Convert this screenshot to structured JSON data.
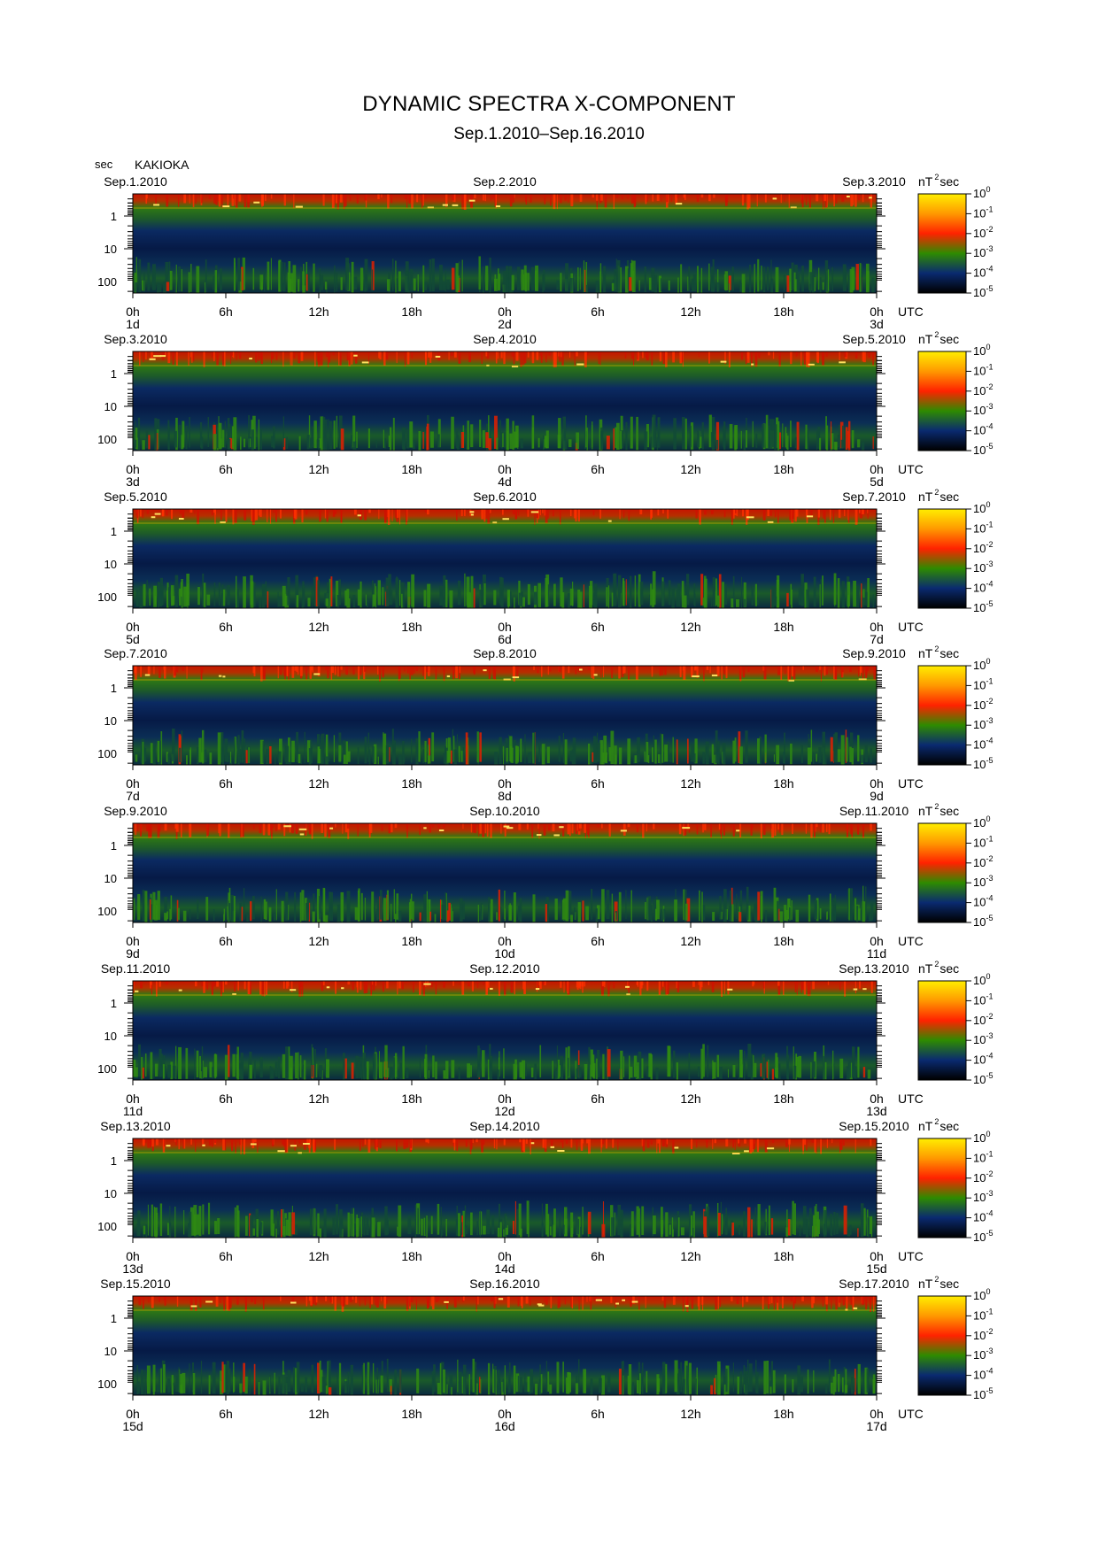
{
  "title": "DYNAMIC SPECTRA X-COMPONENT",
  "subtitle": "Sep.1.2010–Sep.16.2010",
  "station": "KAKIOKA",
  "yaxis_unit": "sec",
  "utc_label": "UTC",
  "colorbar_unit_base": "nT",
  "colorbar_unit_exp": "2",
  "colorbar_unit_tail": "sec",
  "chart_data": {
    "type": "heatmap",
    "title": "DYNAMIC SPECTRA X-COMPONENT",
    "subtitle": "Sep.1.2010–Sep.16.2010",
    "ylabel": "sec",
    "y_scale": "log",
    "y_ticks": [
      1,
      10,
      100
    ],
    "y_tick_labels": [
      "1",
      "10",
      "100"
    ],
    "x_tick_labels": [
      "0h",
      "6h",
      "12h",
      "18h",
      "0h",
      "6h",
      "12h",
      "18h",
      "0h"
    ],
    "x_unit": "UTC",
    "colorbar": {
      "unit": "nT^2 sec",
      "scale": "log",
      "tick_labels": [
        "10^0",
        "10^-1",
        "10^-2",
        "10^-3",
        "10^-4",
        "10^-5"
      ],
      "colors": [
        "#ffee00",
        "#ff9900",
        "#ff2200",
        "#2e8b00",
        "#0a2a70",
        "#000000"
      ]
    },
    "panels": [
      {
        "date_left": "Sep.1.2010",
        "date_mid": "Sep.2.2010",
        "date_right": "Sep.3.2010",
        "day_labels": [
          "1d",
          "2d",
          "3d"
        ]
      },
      {
        "date_left": "Sep.3.2010",
        "date_mid": "Sep.4.2010",
        "date_right": "Sep.5.2010",
        "day_labels": [
          "3d",
          "4d",
          "5d"
        ]
      },
      {
        "date_left": "Sep.5.2010",
        "date_mid": "Sep.6.2010",
        "date_right": "Sep.7.2010",
        "day_labels": [
          "5d",
          "6d",
          "7d"
        ]
      },
      {
        "date_left": "Sep.7.2010",
        "date_mid": "Sep.8.2010",
        "date_right": "Sep.9.2010",
        "day_labels": [
          "7d",
          "8d",
          "9d"
        ]
      },
      {
        "date_left": "Sep.9.2010",
        "date_mid": "Sep.10.2010",
        "date_right": "Sep.11.2010",
        "day_labels": [
          "9d",
          "10d",
          "11d"
        ]
      },
      {
        "date_left": "Sep.11.2010",
        "date_mid": "Sep.12.2010",
        "date_right": "Sep.13.2010",
        "day_labels": [
          "11d",
          "12d",
          "13d"
        ]
      },
      {
        "date_left": "Sep.13.2010",
        "date_mid": "Sep.14.2010",
        "date_right": "Sep.15.2010",
        "day_labels": [
          "13d",
          "14d",
          "15d"
        ]
      },
      {
        "date_left": "Sep.15.2010",
        "date_mid": "Sep.16.2010",
        "date_right": "Sep.17.2010",
        "day_labels": [
          "15d",
          "16d",
          "17d"
        ]
      }
    ]
  }
}
